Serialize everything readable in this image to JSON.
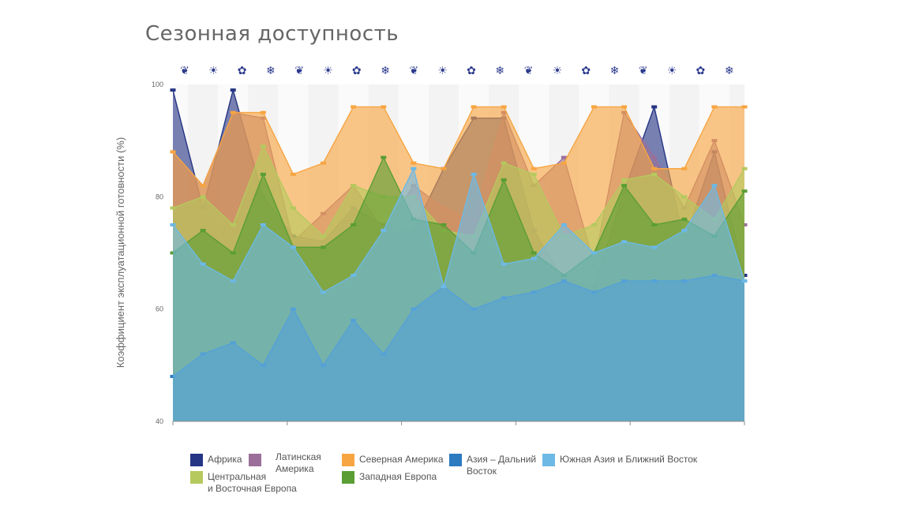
{
  "page": {
    "title": "Сезонная доступность"
  },
  "season_icons": [
    "leaf-icon",
    "sun-icon",
    "maple-leaf-icon",
    "snowflake-icon",
    "leaf-icon",
    "sun-icon",
    "maple-leaf-icon",
    "snowflake-icon",
    "leaf-icon",
    "sun-icon",
    "maple-leaf-icon",
    "snowflake-icon",
    "leaf-icon",
    "sun-icon",
    "maple-leaf-icon",
    "snowflake-icon",
    "leaf-icon",
    "sun-icon",
    "maple-leaf-icon",
    "snowflake-icon"
  ],
  "season_icon_color": "#2b3a8c",
  "chart_data": {
    "type": "area",
    "title": "Сезонная доступность",
    "ylabel": "Коэффициент эксплуатационной готовности (%)",
    "xlabel": "",
    "ylim": [
      40,
      100
    ],
    "yticks": [
      40,
      60,
      80,
      100
    ],
    "x": [
      1,
      2,
      3,
      4,
      5,
      6,
      7,
      8,
      9,
      10,
      11,
      12,
      13,
      14,
      15,
      16,
      17,
      18,
      19,
      20
    ],
    "grid": "alternating-columns",
    "legend_position": "bottom",
    "series": [
      {
        "name": "Африка",
        "color": "#263584",
        "values": [
          99,
          78,
          99,
          80,
          73,
          72,
          78,
          75,
          74,
          85,
          94,
          94,
          74,
          65,
          64,
          81,
          96,
          72,
          88,
          66
        ]
      },
      {
        "name": "Латинская Америка",
        "color": "#9b6f99",
        "values": [
          88,
          82,
          95,
          94,
          72,
          77,
          82,
          74,
          82,
          78,
          76,
          95,
          82,
          87,
          68,
          95,
          87,
          78,
          90,
          75
        ]
      },
      {
        "name": "Северная Америка",
        "color": "#f7a541",
        "values": [
          88,
          82,
          95,
          95,
          84,
          86,
          96,
          96,
          86,
          85,
          96,
          96,
          85,
          86,
          96,
          96,
          85,
          85,
          96,
          96
        ]
      },
      {
        "name": "Центральная и Восточная Европа",
        "color": "#b6c95e",
        "values": [
          78,
          80,
          75,
          89,
          78,
          73,
          82,
          80,
          80,
          74,
          73,
          86,
          84,
          73,
          75,
          83,
          84,
          80,
          76,
          85
        ]
      },
      {
        "name": "Западная Европа",
        "color": "#5a9e34",
        "values": [
          70,
          74,
          70,
          84,
          71,
          71,
          75,
          87,
          76,
          75,
          70,
          83,
          70,
          66,
          70,
          82,
          75,
          76,
          73,
          81
        ]
      },
      {
        "name": "Азия – Дальний Восток",
        "color": "#2c7ac0",
        "values": [
          48,
          52,
          54,
          50,
          60,
          50,
          58,
          52,
          60,
          64,
          60,
          62,
          63,
          65,
          63,
          65,
          65,
          65,
          66,
          65
        ]
      },
      {
        "name": "Южная Азия и Ближний Восток",
        "color": "#6db9e6",
        "values": [
          75,
          68,
          65,
          75,
          71,
          63,
          66,
          74,
          85,
          64,
          84,
          68,
          69,
          75,
          70,
          72,
          71,
          74,
          82,
          65
        ]
      }
    ]
  },
  "legend": [
    {
      "name": "Африка",
      "color": "#263584"
    },
    {
      "name": "Латинская Америка",
      "color": "#9b6f99",
      "display": "Латинская\nАмерика"
    },
    {
      "name": "Северная Америка",
      "color": "#f7a541"
    },
    {
      "name": "Азия – Дальний Восток",
      "color": "#2c7ac0",
      "display": "Азия – Дальний\nВосток"
    },
    {
      "name": "Южная Азия и Ближний Восток",
      "color": "#6db9e6"
    },
    {
      "name": "Центральная и Восточная Европа",
      "color": "#b6c95e",
      "display": "Центральная\n   и Восточная Европа"
    },
    {
      "name": "Западная Европа",
      "color": "#5a9e34"
    }
  ]
}
